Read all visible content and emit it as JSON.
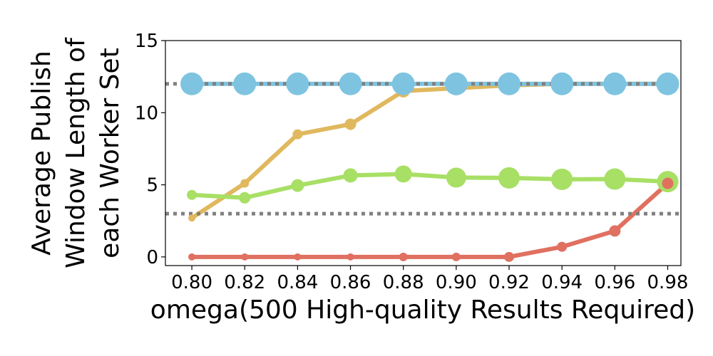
{
  "chart_data": {
    "type": "line",
    "xlabel": "omega(500 High-quality Results Required)",
    "ylabel_lines": [
      "Average Publish",
      "Window Length of",
      "each Worker Set"
    ],
    "x": [
      0.8,
      0.82,
      0.84,
      0.86,
      0.88,
      0.9,
      0.92,
      0.94,
      0.96,
      0.98
    ],
    "x_tick_labels": [
      "0.80",
      "0.82",
      "0.84",
      "0.86",
      "0.88",
      "0.90",
      "0.92",
      "0.94",
      "0.96",
      "0.98"
    ],
    "xlim": [
      0.79,
      0.985
    ],
    "ylim": [
      -0.6,
      15
    ],
    "y_ticks": [
      0,
      5,
      10,
      15
    ],
    "y_tick_labels": [
      "0",
      "5",
      "10",
      "15"
    ],
    "grid": false,
    "reference_lines": [
      {
        "y": 12,
        "color": "#808080",
        "style": "dotted"
      },
      {
        "y": 3,
        "color": "#808080",
        "style": "dotted"
      }
    ],
    "series": [
      {
        "color": "#e0b85e",
        "values": [
          2.7,
          5.1,
          8.5,
          9.2,
          11.5,
          11.7,
          11.9,
          12.0,
          12.0,
          12.0
        ],
        "marker_sizes": [
          5,
          6,
          7,
          8,
          9,
          10,
          11,
          12,
          12,
          12
        ]
      },
      {
        "color": "#a8df65",
        "values": [
          4.3,
          4.1,
          4.95,
          5.65,
          5.75,
          5.5,
          5.48,
          5.38,
          5.4,
          5.22
        ],
        "marker_sizes": [
          7,
          8,
          9,
          10,
          12,
          14,
          15,
          15,
          15,
          15
        ]
      },
      {
        "color": "#e07060",
        "values": [
          0,
          0,
          0,
          0,
          0,
          0,
          0,
          0.7,
          1.8,
          5.1
        ],
        "marker_sizes": [
          5,
          5,
          5,
          5,
          6,
          6,
          7,
          7,
          8,
          8
        ]
      },
      {
        "color": "#7ec4e0",
        "values": [
          12,
          12,
          12,
          12,
          12,
          12,
          12,
          12,
          12,
          12
        ],
        "marker_sizes": [
          16,
          16,
          16,
          16,
          16,
          16,
          16,
          16,
          16,
          16
        ]
      }
    ]
  }
}
